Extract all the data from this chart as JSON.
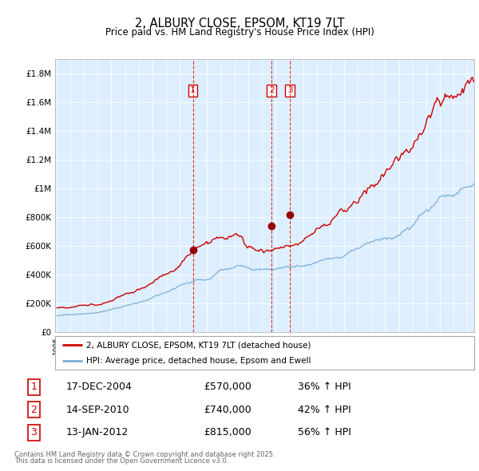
{
  "title": "2, ALBURY CLOSE, EPSOM, KT19 7LT",
  "subtitle": "Price paid vs. HM Land Registry's House Price Index (HPI)",
  "legend_line1": "2, ALBURY CLOSE, EPSOM, KT19 7LT (detached house)",
  "legend_line2": "HPI: Average price, detached house, Epsom and Ewell",
  "sale_dates_decimal": [
    2004.958,
    2010.708,
    2012.042
  ],
  "sale_prices": [
    570000,
    740000,
    815000
  ],
  "sale_labels": [
    "1",
    "2",
    "3"
  ],
  "table_rows": [
    [
      "1",
      "17-DEC-2004",
      "£570,000",
      "36% ↑ HPI"
    ],
    [
      "2",
      "14-SEP-2010",
      "£740,000",
      "42% ↑ HPI"
    ],
    [
      "3",
      "13-JAN-2012",
      "£815,000",
      "56% ↑ HPI"
    ]
  ],
  "footnote1": "Contains HM Land Registry data © Crown copyright and database right 2025.",
  "footnote2": "This data is licensed under the Open Government Licence v3.0.",
  "red_color": "#cc0000",
  "blue_color": "#7aaed6",
  "bg_color": "#ddeeff",
  "plot_bg": "#ddeeff",
  "vline_color": "#cc0000",
  "grid_color": "#ffffff",
  "ylim": [
    0,
    1900000
  ],
  "xlim_start": 1994.9,
  "xlim_end": 2025.5,
  "yticks": [
    0,
    200000,
    400000,
    600000,
    800000,
    1000000,
    1200000,
    1400000,
    1600000,
    1800000
  ],
  "ytick_labels": [
    "£0",
    "£200K",
    "£400K",
    "£600K",
    "£800K",
    "£1M",
    "£1.2M",
    "£1.4M",
    "£1.6M",
    "£1.8M"
  ]
}
